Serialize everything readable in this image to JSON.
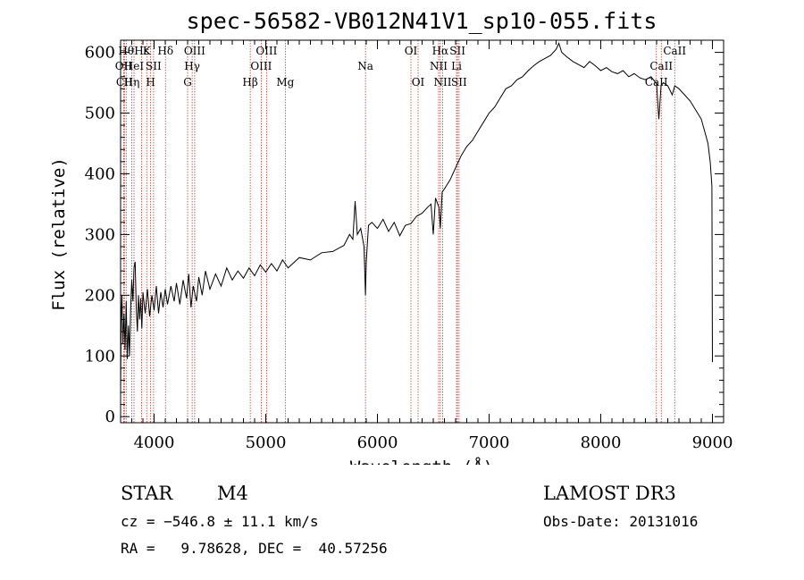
{
  "chart_data": {
    "type": "line",
    "title": "spec-56582-VB012N41V1_sp10-055.fits",
    "xlabel": "Wavelength (Å)",
    "ylabel": "Flux (relative)",
    "xlim": [
      3700,
      9100
    ],
    "ylim": [
      -10,
      620
    ],
    "xticks": [
      4000,
      5000,
      6000,
      7000,
      8000,
      9000
    ],
    "yticks": [
      0,
      100,
      200,
      300,
      400,
      500,
      600
    ],
    "grid": false,
    "series": [
      {
        "name": "spectrum",
        "points": [
          [
            3700,
            40
          ],
          [
            3705,
            160
          ],
          [
            3712,
            200
          ],
          [
            3720,
            120
          ],
          [
            3730,
            170
          ],
          [
            3740,
            110
          ],
          [
            3750,
            190
          ],
          [
            3760,
            95
          ],
          [
            3770,
            150
          ],
          [
            3780,
            100
          ],
          [
            3790,
            180
          ],
          [
            3800,
            225
          ],
          [
            3810,
            190
          ],
          [
            3820,
            245
          ],
          [
            3830,
            255
          ],
          [
            3840,
            180
          ],
          [
            3850,
            140
          ],
          [
            3860,
            200
          ],
          [
            3870,
            160
          ],
          [
            3880,
            195
          ],
          [
            3890,
            145
          ],
          [
            3900,
            205
          ],
          [
            3920,
            170
          ],
          [
            3940,
            210
          ],
          [
            3960,
            165
          ],
          [
            3980,
            200
          ],
          [
            4000,
            175
          ],
          [
            4020,
            215
          ],
          [
            4040,
            170
          ],
          [
            4060,
            205
          ],
          [
            4080,
            180
          ],
          [
            4100,
            210
          ],
          [
            4120,
            185
          ],
          [
            4150,
            215
          ],
          [
            4180,
            190
          ],
          [
            4200,
            220
          ],
          [
            4230,
            185
          ],
          [
            4260,
            225
          ],
          [
            4290,
            195
          ],
          [
            4310,
            235
          ],
          [
            4330,
            180
          ],
          [
            4350,
            215
          ],
          [
            4380,
            190
          ],
          [
            4400,
            230
          ],
          [
            4430,
            200
          ],
          [
            4460,
            240
          ],
          [
            4500,
            210
          ],
          [
            4550,
            235
          ],
          [
            4600,
            215
          ],
          [
            4650,
            245
          ],
          [
            4700,
            225
          ],
          [
            4750,
            240
          ],
          [
            4800,
            228
          ],
          [
            4850,
            245
          ],
          [
            4900,
            232
          ],
          [
            4950,
            250
          ],
          [
            5000,
            238
          ],
          [
            5050,
            252
          ],
          [
            5100,
            240
          ],
          [
            5150,
            258
          ],
          [
            5200,
            245
          ],
          [
            5300,
            262
          ],
          [
            5400,
            258
          ],
          [
            5500,
            270
          ],
          [
            5600,
            272
          ],
          [
            5700,
            282
          ],
          [
            5750,
            300
          ],
          [
            5780,
            292
          ],
          [
            5800,
            355
          ],
          [
            5820,
            300
          ],
          [
            5850,
            310
          ],
          [
            5880,
            280
          ],
          [
            5893,
            200
          ],
          [
            5900,
            255
          ],
          [
            5920,
            315
          ],
          [
            5950,
            320
          ],
          [
            6000,
            310
          ],
          [
            6050,
            325
          ],
          [
            6100,
            305
          ],
          [
            6150,
            320
          ],
          [
            6200,
            298
          ],
          [
            6250,
            315
          ],
          [
            6300,
            318
          ],
          [
            6350,
            330
          ],
          [
            6400,
            335
          ],
          [
            6450,
            345
          ],
          [
            6480,
            350
          ],
          [
            6500,
            300
          ],
          [
            6520,
            360
          ],
          [
            6550,
            345
          ],
          [
            6563,
            310
          ],
          [
            6580,
            370
          ],
          [
            6600,
            375
          ],
          [
            6650,
            390
          ],
          [
            6700,
            410
          ],
          [
            6750,
            430
          ],
          [
            6800,
            445
          ],
          [
            6850,
            455
          ],
          [
            6900,
            470
          ],
          [
            6950,
            485
          ],
          [
            7000,
            500
          ],
          [
            7050,
            510
          ],
          [
            7100,
            525
          ],
          [
            7150,
            540
          ],
          [
            7200,
            545
          ],
          [
            7250,
            555
          ],
          [
            7300,
            560
          ],
          [
            7350,
            570
          ],
          [
            7400,
            578
          ],
          [
            7450,
            585
          ],
          [
            7500,
            590
          ],
          [
            7550,
            595
          ],
          [
            7600,
            605
          ],
          [
            7625,
            615
          ],
          [
            7650,
            600
          ],
          [
            7700,
            592
          ],
          [
            7750,
            585
          ],
          [
            7800,
            580
          ],
          [
            7850,
            575
          ],
          [
            7900,
            585
          ],
          [
            7950,
            578
          ],
          [
            8000,
            570
          ],
          [
            8050,
            575
          ],
          [
            8100,
            568
          ],
          [
            8150,
            565
          ],
          [
            8200,
            570
          ],
          [
            8250,
            560
          ],
          [
            8300,
            565
          ],
          [
            8350,
            558
          ],
          [
            8400,
            555
          ],
          [
            8450,
            560
          ],
          [
            8500,
            548
          ],
          [
            8520,
            490
          ],
          [
            8540,
            545
          ],
          [
            8560,
            550
          ],
          [
            8600,
            545
          ],
          [
            8640,
            530
          ],
          [
            8662,
            545
          ],
          [
            8700,
            540
          ],
          [
            8750,
            530
          ],
          [
            8800,
            520
          ],
          [
            8850,
            505
          ],
          [
            8900,
            490
          ],
          [
            8930,
            470
          ],
          [
            8960,
            450
          ],
          [
            8980,
            420
          ],
          [
            8995,
            380
          ],
          [
            9000,
            90
          ]
        ]
      }
    ],
    "line_markers": [
      {
        "wavelength": 3750,
        "label": "Hθ",
        "row": 0
      },
      {
        "wavelength": 3727,
        "label": "OII",
        "row": 1
      },
      {
        "wavelength": 3734,
        "label": "CII",
        "row": 2
      },
      {
        "wavelength": 3800,
        "label": "Hη",
        "row": 2
      },
      {
        "wavelength": 3820,
        "label": "HeI",
        "row": 1
      },
      {
        "wavelength": 3889,
        "label": "Hε",
        "row": 0
      },
      {
        "wavelength": 3934,
        "label": "K",
        "row": 0
      },
      {
        "wavelength": 3969,
        "label": "H",
        "row": 2
      },
      {
        "wavelength": 3995,
        "label": "SII",
        "row": 1
      },
      {
        "wavelength": 4102,
        "label": "Hδ",
        "row": 0
      },
      {
        "wavelength": 4300,
        "label": "G",
        "row": 2
      },
      {
        "wavelength": 4341,
        "label": "Hγ",
        "row": 1
      },
      {
        "wavelength": 4363,
        "label": "OIII",
        "row": 0
      },
      {
        "wavelength": 4861,
        "label": "Hβ",
        "row": 2
      },
      {
        "wavelength": 4959,
        "label": "OIII",
        "row": 1
      },
      {
        "wavelength": 5007,
        "label": "OIII",
        "row": 0
      },
      {
        "wavelength": 5175,
        "label": "Mg",
        "row": 2
      },
      {
        "wavelength": 5893,
        "label": "Na",
        "row": 1
      },
      {
        "wavelength": 6300,
        "label": "OI",
        "row": 0
      },
      {
        "wavelength": 6364,
        "label": "OI",
        "row": 2
      },
      {
        "wavelength": 6548,
        "label": "NII",
        "row": 1
      },
      {
        "wavelength": 6563,
        "label": "Hα",
        "row": 0
      },
      {
        "wavelength": 6584,
        "label": "NII",
        "row": 2
      },
      {
        "wavelength": 6708,
        "label": "Li",
        "row": 1
      },
      {
        "wavelength": 6717,
        "label": "SII",
        "row": 0
      },
      {
        "wavelength": 6731,
        "label": "SII",
        "row": 2
      },
      {
        "wavelength": 8498,
        "label": "CaII",
        "row": 2
      },
      {
        "wavelength": 8542,
        "label": "CaII",
        "row": 1
      },
      {
        "wavelength": 8662,
        "label": "CaII",
        "row": 0
      }
    ]
  },
  "info": {
    "class": "STAR",
    "subclass": "M4",
    "cz": "cz = −546.8 ± 11.1 km/s",
    "coords": "RA =   9.78628, DEC =  40.57256",
    "survey": "LAMOST DR3",
    "obs_date": "Obs-Date: 20131016"
  },
  "colors": {
    "spectrum": "#000000",
    "marker_line": "#c0392b",
    "axes": "#000000"
  }
}
